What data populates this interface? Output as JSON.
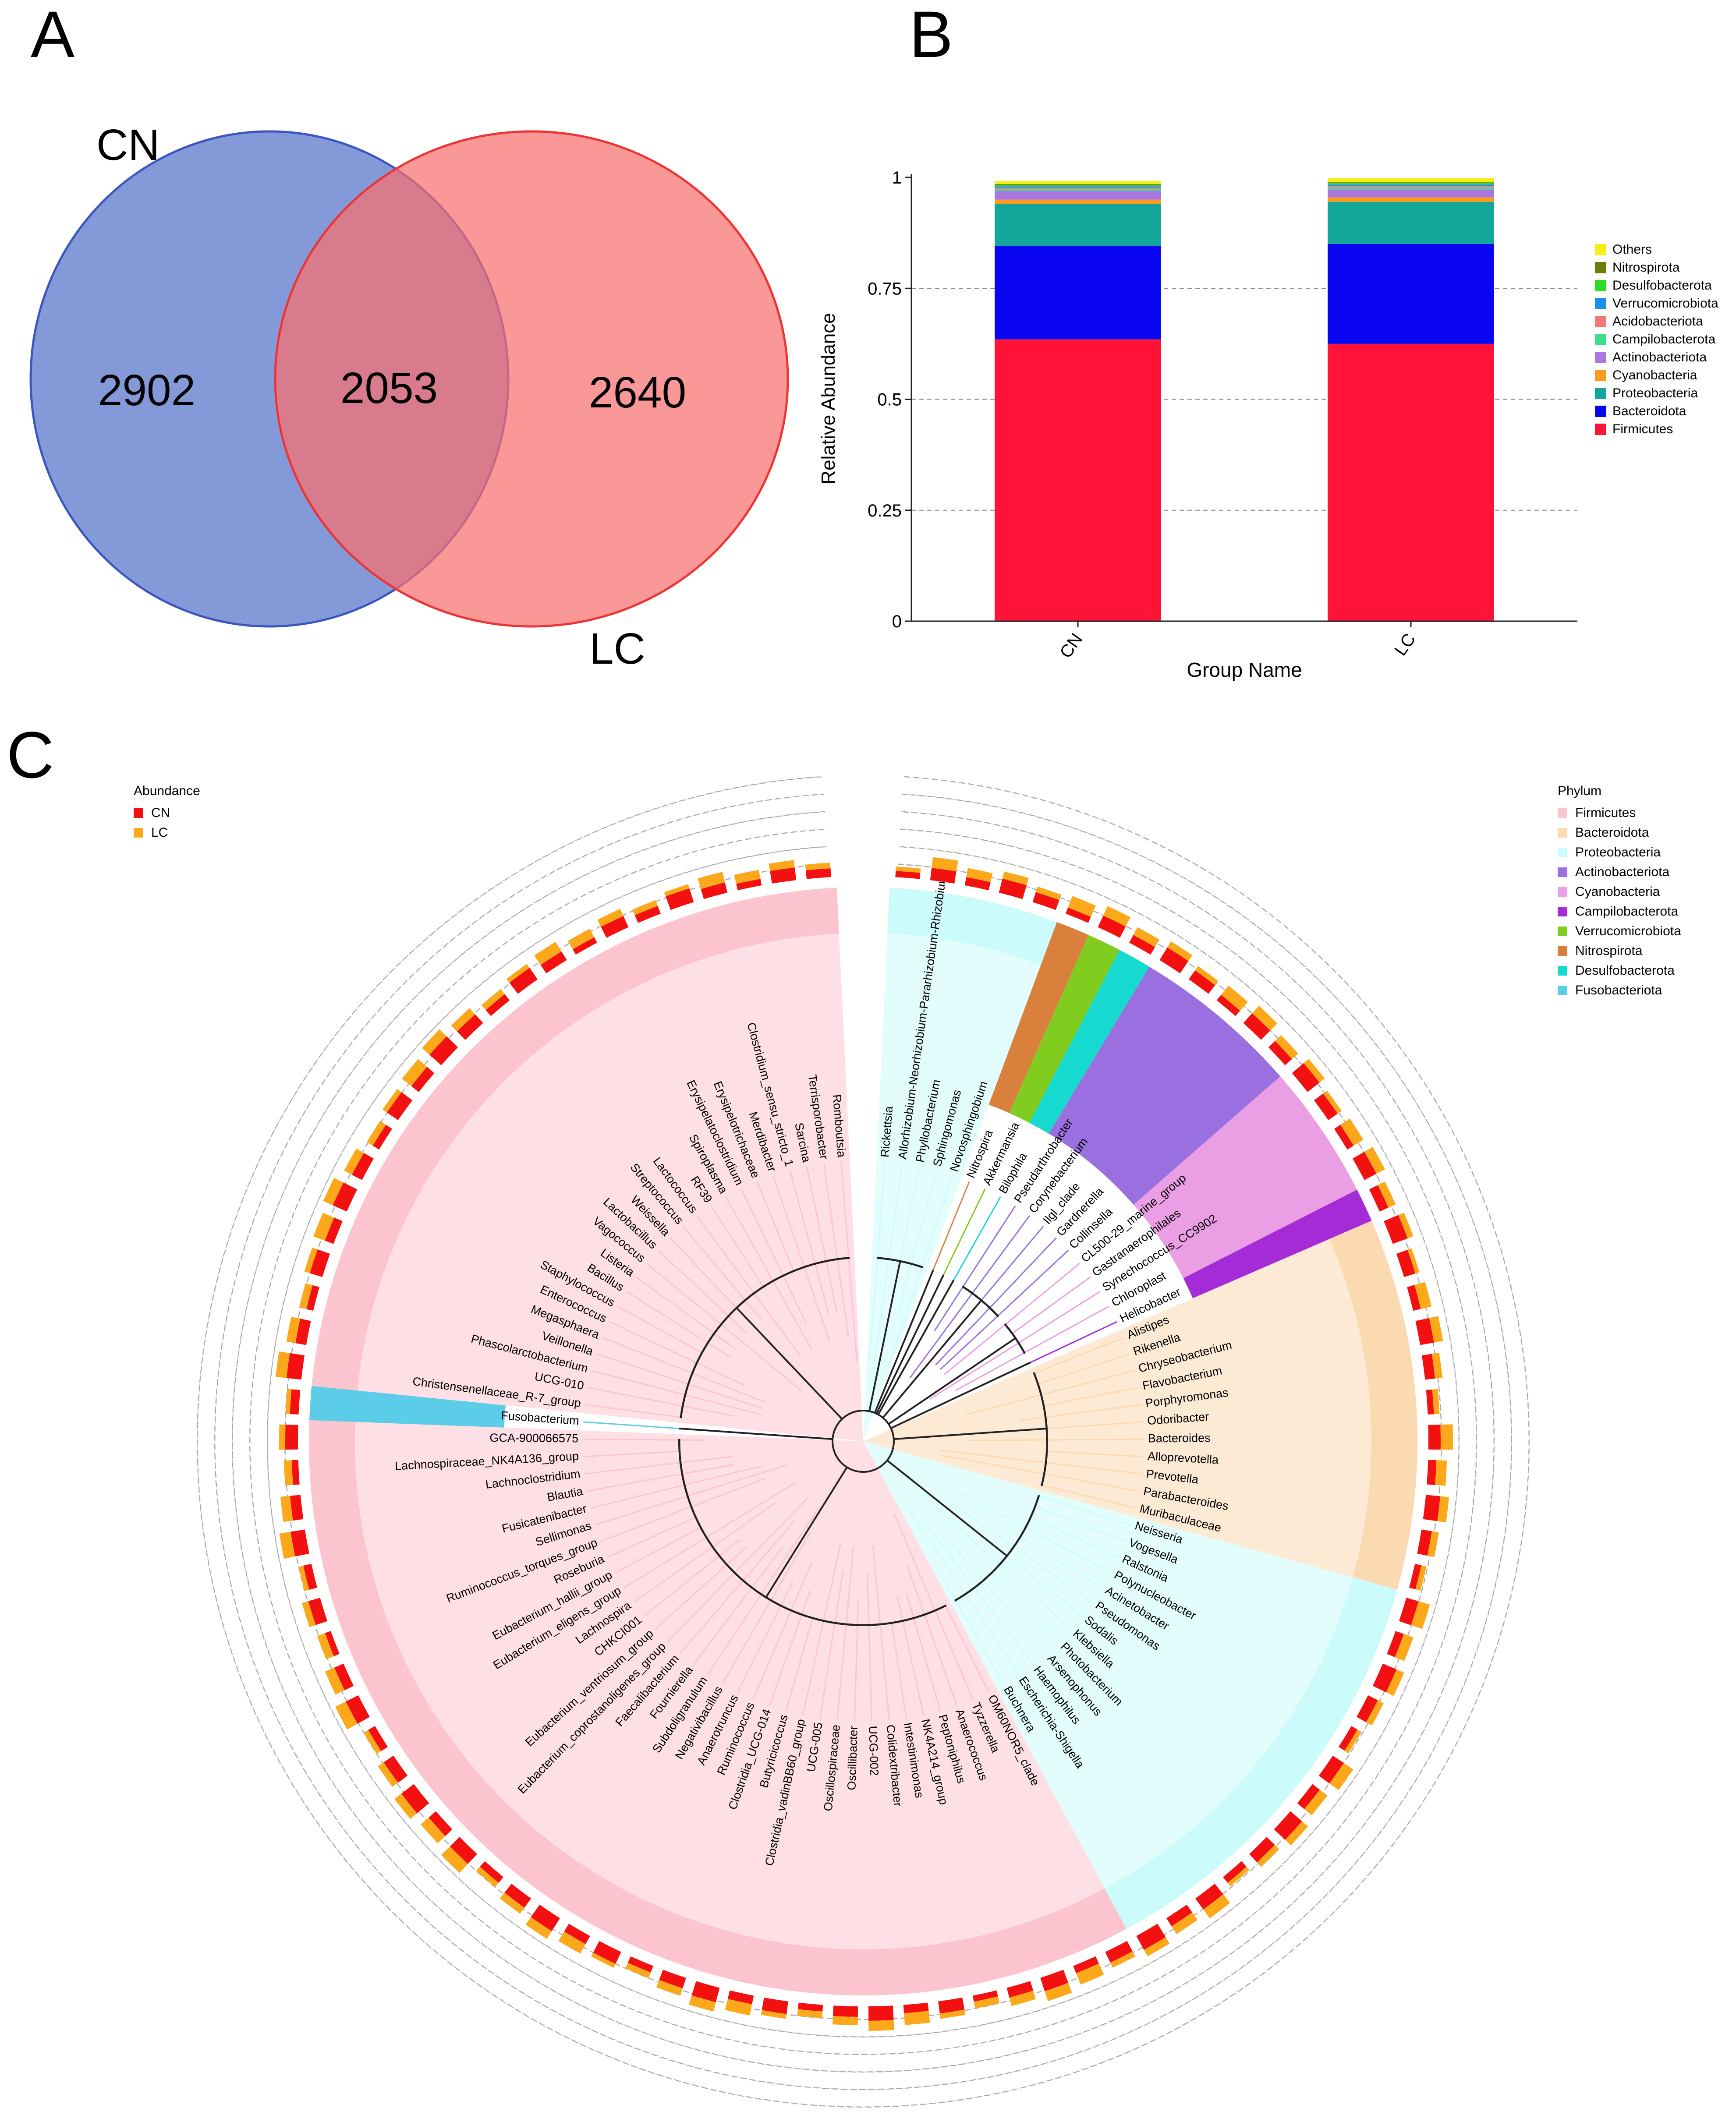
{
  "panels": {
    "a": "A",
    "b": "B",
    "c": "C"
  },
  "venn": {
    "set_a": {
      "label": "CN",
      "color": "#6f88d1"
    },
    "set_b": {
      "label": "LC",
      "color": "#f86f6f"
    },
    "only_a": "2902",
    "both": "2053",
    "only_b": "2640"
  },
  "chart_data": [
    {
      "type": "bar",
      "stacked": true,
      "xlabel": "Group Name",
      "ylabel": "Relative Abundance",
      "ylim": [
        0,
        1
      ],
      "yticks": [
        "0",
        "0.25",
        "0.5",
        "0.75",
        "1"
      ],
      "grid": "dashed horizontal at 0.25, 0.5, 0.75",
      "legend_position": "right",
      "categories": [
        "CN",
        "LC"
      ],
      "series": [
        {
          "name": "Firmicutes",
          "color": "#ff1438",
          "values": [
            0.635,
            0.625
          ]
        },
        {
          "name": "Bacteroidota",
          "color": "#0a06f2",
          "values": [
            0.21,
            0.225
          ]
        },
        {
          "name": "Proteobacteria",
          "color": "#13a79b",
          "values": [
            0.095,
            0.095
          ]
        },
        {
          "name": "Cyanobacteria",
          "color": "#fb9c1e",
          "values": [
            0.01,
            0.01
          ]
        },
        {
          "name": "Actinobacteriota",
          "color": "#a878e0",
          "values": [
            0.02,
            0.018
          ]
        },
        {
          "name": "Campilobacterota",
          "color": "#3de08a",
          "values": [
            0.004,
            0.004
          ]
        },
        {
          "name": "Acidobacteriota",
          "color": "#f37979",
          "values": [
            0.003,
            0.003
          ]
        },
        {
          "name": "Verrucomicrobiota",
          "color": "#1b8ef0",
          "values": [
            0.003,
            0.004
          ]
        },
        {
          "name": "Desulfobacterota",
          "color": "#2ddc28",
          "values": [
            0.003,
            0.003
          ]
        },
        {
          "name": "Nitrospirota",
          "color": "#6d7d0a",
          "values": [
            0.002,
            0.002
          ]
        },
        {
          "name": "Others",
          "color": "#f7ee18",
          "values": [
            0.007,
            0.009
          ]
        }
      ]
    },
    {
      "type": "other",
      "chart_kind": "circular phylogenetic tree with abundance bars",
      "abundance_legend": {
        "title": "Abundance",
        "items": [
          {
            "name": "CN",
            "color": "#f21010"
          },
          {
            "name": "LC",
            "color": "#fba91a"
          }
        ]
      },
      "phylum_legend": {
        "title": "Phylum",
        "items": [
          {
            "name": "Firmicutes",
            "color": "#fcc4cf"
          },
          {
            "name": "Bacteroidota",
            "color": "#fbd9b1"
          },
          {
            "name": "Proteobacteria",
            "color": "#ccfbfb"
          },
          {
            "name": "Actinobacteriota",
            "color": "#9a6fe0"
          },
          {
            "name": "Cyanobacteria",
            "color": "#ea9ee3"
          },
          {
            "name": "Campilobacterota",
            "color": "#a52bd6"
          },
          {
            "name": "Verrucomicrobiota",
            "color": "#80cc1f"
          },
          {
            "name": "Nitrospirota",
            "color": "#d9803d"
          },
          {
            "name": "Desulfobacterota",
            "color": "#16d9cf"
          },
          {
            "name": "Fusobacteriota",
            "color": "#5ccde8"
          }
        ]
      },
      "sectors": [
        {
          "phylum": "Proteobacteria",
          "taxa": [
            "Rickettsia",
            "Allorhizobium-Neorhizobium-Pararhizobium-Rhizobium",
            "Phyllobacterium",
            "Sphingomonas",
            "Novosphingobium"
          ]
        },
        {
          "phylum": "Nitrospirota",
          "taxa": [
            "Nitrospira"
          ]
        },
        {
          "phylum": "Verrucomicrobiota",
          "taxa": [
            "Akkermansia"
          ]
        },
        {
          "phylum": "Desulfobacterota",
          "taxa": [
            "Bilophila"
          ]
        },
        {
          "phylum": "Actinobacteriota",
          "taxa": [
            "Pseudarthrobacter",
            "Corynebacterium",
            "Ilgl_clade",
            "Gardnerella",
            "Collinsella"
          ]
        },
        {
          "phylum": "Cyanobacteria",
          "taxa": [
            "CL500-29_marine_group",
            "Gastranaerophilales",
            "Synechococcus_CC9902",
            "Chloroplast"
          ]
        },
        {
          "phylum": "Campilobacterota",
          "taxa": [
            "Helicobacter"
          ]
        },
        {
          "phylum": "Bacteroidota",
          "taxa": [
            "Alistipes",
            "Rikenella",
            "Chryseobacterium",
            "Flavobacterium",
            "Porphyromonas",
            "Odoribacter",
            "Bacteroides",
            "Alloprevotella",
            "Prevotella",
            "Parabacteroides",
            "Muribaculaceae"
          ]
        },
        {
          "phylum": "Proteobacteria",
          "taxa": [
            "Neisseria",
            "Vogesella",
            "Ralstonia",
            "Polynucleobacter",
            "Acinetobacter",
            "Pseudomonas",
            "Sodalis",
            "Klebsiella",
            "Photobacterium",
            "Arsenophonus",
            "Haemophilus",
            "Escherichia-Shigella",
            "Buchnera"
          ]
        },
        {
          "phylum": "Firmicutes",
          "taxa": [
            "OM60NOR5_clade",
            "Tyzzerella",
            "Anaerococcus",
            "Peptoniphilus",
            "NK4A214_group",
            "Intestinimonas",
            "Colidextribacter",
            "UCG-002",
            "Oscillibacter",
            "Oscillospiraceae",
            "UCG-005",
            "Clostridia_vadinBB60_group",
            "Butyricicoccus",
            "Clostridia_UCG-014",
            "Ruminococcus",
            "Anaerotruncus",
            "Negativibacillus",
            "Subdoligranulum",
            "Fournierella",
            "Faecalibacterium",
            "Eubacterium_coprostanoligenes_group",
            "Eubacterium_ventriosum_group",
            "CHKCI001",
            "Lachnospira",
            "Eubacterium_eligens_group",
            "Eubacterium_hallii_group",
            "Roseburia",
            "Ruminococcus_torques_group",
            "Sellimonas",
            "Fusicatenibacter",
            "Blautia",
            "Lachnoclostridium",
            "Lachnospiraceae_NK4A136_group",
            "GCA-900066575"
          ]
        },
        {
          "phylum": "Fusobacteriota",
          "taxa": [
            "Fusobacterium"
          ]
        },
        {
          "phylum": "Firmicutes",
          "taxa": [
            "Christensenellaceae_R-7_group",
            "UCG-010",
            "Phascolarctobacterium",
            "Veillonella",
            "Megasphaera",
            "Enterococcus",
            "Staphylococcus",
            "Bacillus",
            "Listeria",
            "Vagococcus",
            "Lactobacillus",
            "Weissella",
            "Streptococcus",
            "Lactococcus",
            "RF39",
            "Spiroplasma",
            "Erysipelatoclostridium",
            "Erysipelotrichaceae",
            "Merdibacter",
            "Clostridium_sensu_stricto_1",
            "Sarcina",
            "Terrisporobacter",
            "Romboutsia"
          ]
        }
      ]
    }
  ]
}
